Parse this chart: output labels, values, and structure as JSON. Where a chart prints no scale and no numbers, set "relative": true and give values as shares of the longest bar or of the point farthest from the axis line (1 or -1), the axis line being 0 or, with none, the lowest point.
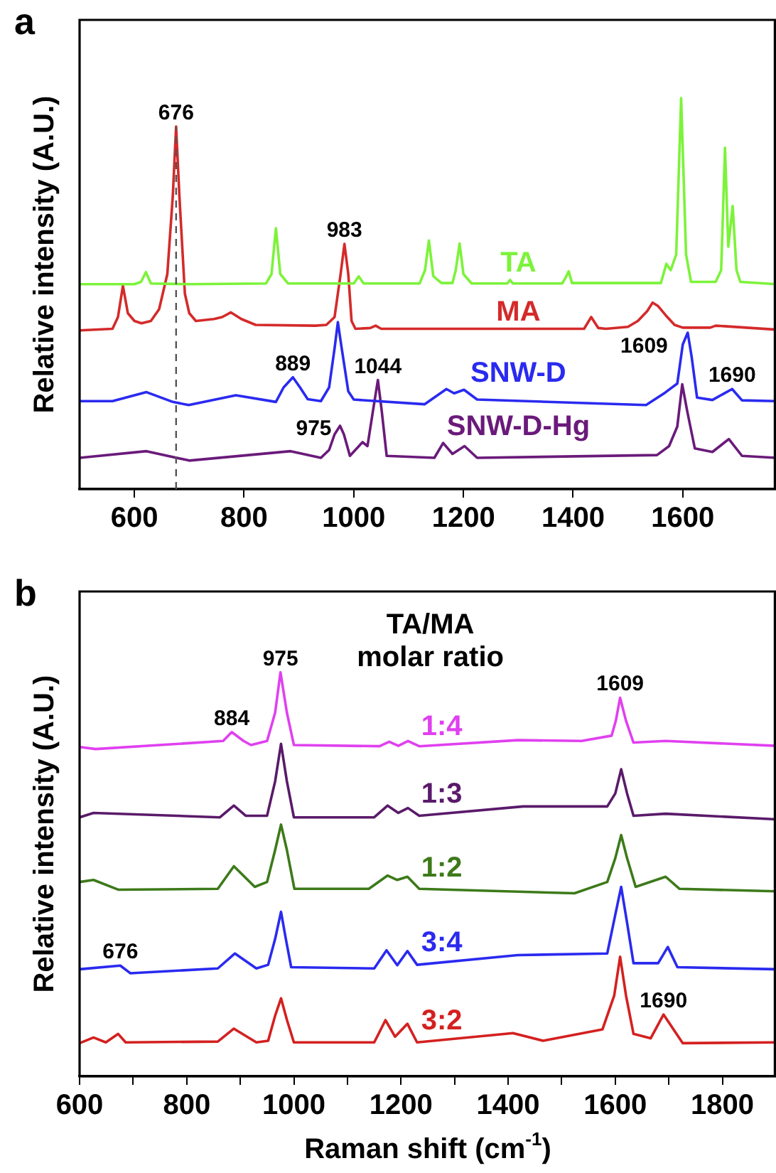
{
  "chart_data": [
    {
      "type": "line",
      "ylabel": "Relative intensity (A.U.)",
      "relative": true,
      "grid": false,
      "legend": false,
      "marker": "none",
      "tick_labels": "x",
      "xlim": [
        500,
        1770
      ],
      "xticks": [
        600,
        800,
        1000,
        1200,
        1400,
        1600
      ],
      "annotations": [
        "a",
        {
          "text": "676",
          "x": 676,
          "y": 0.927
        },
        {
          "text": "983",
          "x": 983,
          "y": 0.627
        },
        {
          "text": "889",
          "x": 889,
          "y": 0.286
        },
        {
          "text": "1044",
          "x": 1044,
          "y": 0.279
        },
        {
          "text": "975",
          "x": 975,
          "y": 0.162
        },
        {
          "text": "1609",
          "x": 1609,
          "y": 0.4
        },
        {
          "text": "1690",
          "x": 1690,
          "y": 0.256
        }
      ],
      "ref_lines": [
        {
          "axis": "x",
          "value": 676,
          "line_style": "dashed",
          "color": "#555555"
        }
      ],
      "series": [
        {
          "name": "TA",
          "color": "#7cf33a",
          "x": [
            500,
            600,
            612,
            621,
            630,
            700,
            840,
            850,
            858,
            866,
            880,
            1000,
            1009,
            1018,
            1120,
            1130,
            1137,
            1145,
            1153,
            1160,
            1180,
            1186,
            1193,
            1200,
            1215,
            1280,
            1285,
            1290,
            1380,
            1386,
            1392,
            1398,
            1560,
            1570,
            1578,
            1588,
            1597,
            1606,
            1615,
            1660,
            1670,
            1677,
            1683,
            1691,
            1698,
            1705,
            1770
          ],
          "values": [
            0.524,
            0.524,
            0.53,
            0.555,
            0.526,
            0.524,
            0.526,
            0.55,
            0.667,
            0.55,
            0.526,
            0.526,
            0.544,
            0.526,
            0.526,
            0.56,
            0.636,
            0.545,
            0.535,
            0.527,
            0.527,
            0.56,
            0.628,
            0.55,
            0.526,
            0.526,
            0.535,
            0.526,
            0.526,
            0.54,
            0.557,
            0.527,
            0.527,
            0.576,
            0.56,
            0.6,
            1.0,
            0.6,
            0.53,
            0.53,
            0.56,
            0.873,
            0.62,
            0.724,
            0.56,
            0.53,
            0.524
          ]
        },
        {
          "name": "MA",
          "color": "#d42a2a",
          "x": [
            500,
            560,
            570,
            579,
            588,
            600,
            613,
            630,
            645,
            660,
            670,
            676,
            682,
            692,
            700,
            712,
            745,
            760,
            776,
            795,
            821,
            930,
            950,
            965,
            976,
            983,
            990,
            996,
            1003,
            1030,
            1040,
            1050,
            1420,
            1433,
            1446,
            1460,
            1500,
            1518,
            1535,
            1545,
            1555,
            1568,
            1585,
            1600,
            1650,
            1660,
            1770
          ],
          "values": [
            0.406,
            0.41,
            0.44,
            0.52,
            0.45,
            0.43,
            0.424,
            0.43,
            0.46,
            0.55,
            0.75,
            0.927,
            0.75,
            0.5,
            0.45,
            0.43,
            0.435,
            0.44,
            0.452,
            0.435,
            0.42,
            0.418,
            0.42,
            0.44,
            0.55,
            0.627,
            0.55,
            0.43,
            0.41,
            0.412,
            0.418,
            0.41,
            0.41,
            0.44,
            0.412,
            0.41,
            0.415,
            0.43,
            0.455,
            0.477,
            0.468,
            0.446,
            0.42,
            0.413,
            0.413,
            0.418,
            0.408
          ]
        },
        {
          "name": "SNW-D",
          "color": "#2a2af0",
          "x": [
            500,
            560,
            622,
            670,
            699,
            785,
            858,
            872,
            889,
            902,
            916,
            940,
            955,
            965,
            971,
            978,
            990,
            1000,
            1129,
            1169,
            1183,
            1201,
            1225,
            1533,
            1568,
            1590,
            1600,
            1609,
            1616,
            1626,
            1654,
            1690,
            1708,
            1770
          ],
          "values": [
            0.225,
            0.225,
            0.248,
            0.223,
            0.215,
            0.24,
            0.223,
            0.26,
            0.286,
            0.26,
            0.23,
            0.225,
            0.26,
            0.36,
            0.427,
            0.36,
            0.25,
            0.229,
            0.217,
            0.256,
            0.245,
            0.254,
            0.229,
            0.215,
            0.247,
            0.27,
            0.37,
            0.4,
            0.34,
            0.234,
            0.228,
            0.256,
            0.227,
            0.225
          ]
        },
        {
          "name": "SNW-D-Hg",
          "color": "#6a1a7a",
          "x": [
            500,
            622,
            700,
            885,
            940,
            955,
            965,
            975,
            982,
            993,
            1016,
            1025,
            1035,
            1044,
            1051,
            1060,
            1147,
            1163,
            1180,
            1202,
            1225,
            1553,
            1575,
            1590,
            1599,
            1608,
            1622,
            1654,
            1684,
            1708,
            1770
          ],
          "values": [
            0.08,
            0.097,
            0.073,
            0.097,
            0.08,
            0.1,
            0.14,
            0.162,
            0.14,
            0.085,
            0.12,
            0.11,
            0.2,
            0.279,
            0.2,
            0.085,
            0.08,
            0.118,
            0.09,
            0.11,
            0.08,
            0.087,
            0.11,
            0.16,
            0.268,
            0.2,
            0.104,
            0.095,
            0.128,
            0.085,
            0.08
          ]
        }
      ]
    },
    {
      "type": "line",
      "xlabel": "Raman shift (cm$^{-1}$)",
      "ylabel": "Relative intensity (A.U.)",
      "legend_title": "TA/MA molar ratio",
      "relative": true,
      "grid": false,
      "legend": false,
      "marker": "none",
      "tick_labels": "x",
      "xlim": [
        600,
        1900
      ],
      "xticks": [
        600,
        {
          "value": 700,
          "label": null
        },
        800,
        {
          "value": 900,
          "label": null
        },
        1000,
        {
          "value": 1100,
          "label": null
        },
        1200,
        {
          "value": 1300,
          "label": null
        },
        1400,
        {
          "value": 1500,
          "label": null
        },
        1600,
        {
          "value": 1700,
          "label": null
        },
        1800
      ],
      "annotations": [
        "b",
        {
          "text": "975",
          "x": 975,
          "y": 1.0
        },
        {
          "text": "884",
          "x": 884,
          "y": 0.852
        },
        {
          "text": "1609",
          "x": 1609,
          "y": 0.937
        },
        {
          "text": "676",
          "x": 676,
          "y": 0.274
        },
        {
          "text": "1690",
          "x": 1690,
          "y": 0.153
        }
      ],
      "series": [
        {
          "name": "1:4",
          "color": "#e040f0",
          "x": [
            600,
            630,
            868,
            884,
            906,
            920,
            950,
            965,
            975,
            987,
            1000,
            1160,
            1178,
            1195,
            1213,
            1234,
            1418,
            1537,
            1593,
            1601,
            1609,
            1620,
            1634,
            1694,
            1900
          ],
          "values": [
            0.815,
            0.81,
            0.83,
            0.852,
            0.83,
            0.82,
            0.83,
            0.9,
            1.0,
            0.9,
            0.82,
            0.817,
            0.828,
            0.818,
            0.83,
            0.817,
            0.832,
            0.83,
            0.843,
            0.88,
            0.937,
            0.88,
            0.826,
            0.83,
            0.818
          ]
        },
        {
          "name": "1:3",
          "color": "#5a1a6a",
          "x": [
            600,
            626,
            862,
            888,
            910,
            950,
            965,
            976,
            987,
            1000,
            1150,
            1175,
            1195,
            1213,
            1234,
            1428,
            1585,
            1600,
            1611,
            1622,
            1634,
            1694,
            1900
          ],
          "values": [
            0.641,
            0.652,
            0.641,
            0.67,
            0.645,
            0.645,
            0.73,
            0.823,
            0.73,
            0.641,
            0.641,
            0.67,
            0.652,
            0.664,
            0.645,
            0.668,
            0.668,
            0.7,
            0.76,
            0.7,
            0.645,
            0.65,
            0.636
          ]
        },
        {
          "name": "1:2",
          "color": "#3d7a1a",
          "x": [
            600,
            626,
            672,
            858,
            888,
            927,
            950,
            965,
            976,
            987,
            1001,
            1140,
            1175,
            1193,
            1212,
            1234,
            1524,
            1585,
            1600,
            1611,
            1622,
            1638,
            1694,
            1720,
            1900
          ],
          "values": [
            0.481,
            0.486,
            0.462,
            0.464,
            0.52,
            0.469,
            0.481,
            0.56,
            0.623,
            0.56,
            0.464,
            0.464,
            0.497,
            0.486,
            0.494,
            0.464,
            0.453,
            0.481,
            0.54,
            0.597,
            0.54,
            0.469,
            0.494,
            0.464,
            0.458
          ]
        },
        {
          "name": "3:4",
          "color": "#2a2af0",
          "x": [
            600,
            676,
            695,
            858,
            890,
            930,
            952,
            965,
            976,
            985,
            995,
            1150,
            1173,
            1193,
            1212,
            1230,
            1418,
            1585,
            1600,
            1611,
            1622,
            1634,
            1680,
            1698,
            1716,
            1900
          ],
          "values": [
            0.265,
            0.274,
            0.255,
            0.267,
            0.304,
            0.267,
            0.276,
            0.34,
            0.407,
            0.34,
            0.27,
            0.267,
            0.312,
            0.275,
            0.31,
            0.276,
            0.3,
            0.304,
            0.4,
            0.469,
            0.38,
            0.28,
            0.28,
            0.32,
            0.27,
            0.265
          ]
        },
        {
          "name": "3:2",
          "color": "#d42020",
          "x": [
            600,
            626,
            649,
            672,
            686,
            858,
            888,
            930,
            952,
            965,
            976,
            987,
            1000,
            1150,
            1171,
            1189,
            1212,
            1230,
            1409,
            1465,
            1576,
            1598,
            1609,
            1620,
            1634,
            1666,
            1690,
            1726,
            1900
          ],
          "values": [
            0.082,
            0.096,
            0.084,
            0.105,
            0.084,
            0.086,
            0.118,
            0.084,
            0.088,
            0.15,
            0.193,
            0.14,
            0.084,
            0.084,
            0.139,
            0.098,
            0.13,
            0.084,
            0.107,
            0.088,
            0.116,
            0.2,
            0.296,
            0.2,
            0.105,
            0.094,
            0.153,
            0.082,
            0.084
          ]
        }
      ]
    }
  ]
}
